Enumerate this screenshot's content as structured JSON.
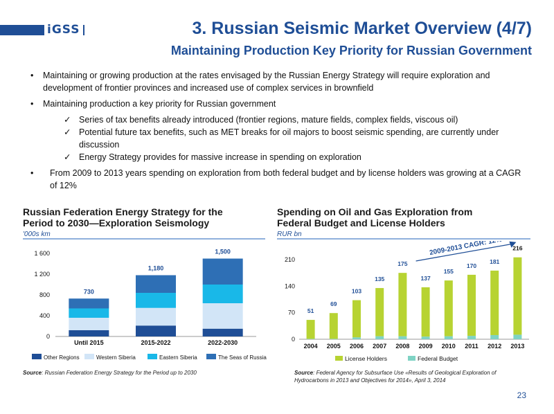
{
  "header": {
    "logo": "iGSS",
    "title": "3. Russian Seismic Market Overview (4/7)",
    "subtitle": "Maintaining Production Key Priority for Russian Government"
  },
  "bullets": {
    "b1": "Maintaining or growing production at the rates envisaged by the Russian Energy Strategy will require exploration and development of frontier provinces and increased use of complex services in brownfield",
    "b2": "Maintaining production a key priority for Russian government",
    "c1": "Series of tax benefits already introduced (frontier regions, mature fields, complex fields, viscous oil)",
    "c2": "Potential future tax benefits, such as MET breaks for oil majors to boost seismic spending, are currently under discussion",
    "c3": "Energy Strategy provides for massive increase in spending on exploration",
    "b3": "From 2009 to 2013 years spending on exploration from both federal budget and by license holders was growing at a CAGR of 12%"
  },
  "left": {
    "title": "Russian Federation Energy Strategy for the Period to 2030—Exploration Seismology",
    "unit": "'000s km",
    "source_label": "Source",
    "source_text": ": Russian Federation Energy Strategy for the Period up to 2030"
  },
  "right": {
    "title": "Spending on Oil and Gas Exploration from Federal Budget and License Holders",
    "unit": "RUR bn",
    "source_label": "Source",
    "source_text": ": Federal Agency for Subsurface Use «Results of Geological Exploration of Hydrocarbons in 2013 and Objectives for 2014», April 3, 2014",
    "cagr": "2009-2013 CAGR: 12%"
  },
  "page_number": "23",
  "chart_data": [
    {
      "type": "bar",
      "stacked": true,
      "categories": [
        "Until 2015",
        "2015-2022",
        "2022-2030"
      ],
      "series": [
        {
          "name": "Other Regions",
          "color": "#1f4e96",
          "values": [
            120,
            210,
            150
          ]
        },
        {
          "name": "Western Siberia",
          "color": "#d2e5f7",
          "values": [
            240,
            340,
            490
          ]
        },
        {
          "name": "Eastern Siberia",
          "color": "#19b8e8",
          "values": [
            180,
            290,
            360
          ]
        },
        {
          "name": "The Seas of Russia",
          "color": "#2e6fb5",
          "values": [
            190,
            340,
            500
          ]
        }
      ],
      "totals": [
        730,
        1180,
        1500
      ],
      "total_labels": [
        "730",
        "1,180",
        "1,500"
      ],
      "ylim": [
        0,
        1600
      ],
      "yticks": [
        0,
        400,
        800,
        1200,
        1600
      ],
      "ytick_labels": [
        "0",
        "400",
        "800",
        "1 200",
        "1 600"
      ],
      "grid": false,
      "legend": "bottom"
    },
    {
      "type": "bar",
      "stacked": true,
      "categories": [
        "2004",
        "2005",
        "2006",
        "2007",
        "2008",
        "2009",
        "2010",
        "2011",
        "2012",
        "2013"
      ],
      "series": [
        {
          "name": "License Holders",
          "color": "#b7d332",
          "values": [
            50,
            68,
            98,
            127,
            167,
            130,
            147,
            161,
            170,
            204
          ]
        },
        {
          "name": "Federal Budget",
          "color": "#7fd3c4",
          "values": [
            1,
            1,
            5,
            8,
            8,
            7,
            8,
            9,
            11,
            12
          ]
        }
      ],
      "totals": [
        51,
        69,
        103,
        135,
        175,
        137,
        155,
        170,
        181,
        216
      ],
      "ylim": [
        0,
        210
      ],
      "yticks": [
        0,
        70,
        140,
        210
      ],
      "grid": false,
      "legend": "bottom"
    }
  ]
}
